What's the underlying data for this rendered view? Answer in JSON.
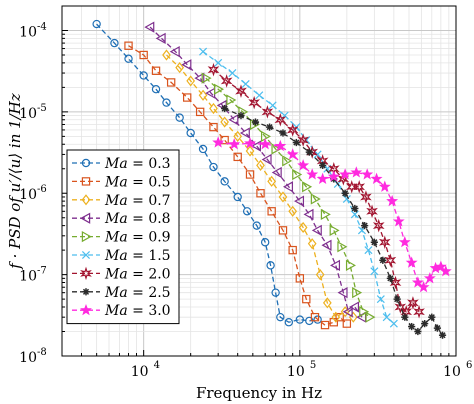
{
  "chart_data": {
    "type": "line",
    "xlabel": "Frequency in Hz",
    "ylabel": "f · PSD of u′/⟨u⟩ in 1/Hz",
    "xscale": "log",
    "yscale": "log",
    "xlim": [
      3000,
      1000000
    ],
    "ylim": [
      1e-08,
      0.0002
    ],
    "grid": true,
    "legend_position": "bottom-left",
    "x_tick_labels": [
      {
        "value": 10000,
        "base": "10",
        "exp": "4"
      },
      {
        "value": 100000,
        "base": "10",
        "exp": "5"
      },
      {
        "value": 1000000,
        "base": "10",
        "exp": "6"
      }
    ],
    "y_tick_labels": [
      {
        "value": 1e-08,
        "base": "10",
        "exp": "-8"
      },
      {
        "value": 1e-07,
        "base": "10",
        "exp": "-7"
      },
      {
        "value": 1e-06,
        "base": "10",
        "exp": "-6"
      },
      {
        "value": 1e-05,
        "base": "10",
        "exp": "-5"
      },
      {
        "value": 0.0001,
        "base": "10",
        "exp": "-4"
      }
    ],
    "series": [
      {
        "name": "Ma = 0.3",
        "legend_var": "Ma",
        "legend_val": "0.3",
        "color": "#1f6fb5",
        "marker": "circle",
        "points": [
          [
            5000,
            0.00012
          ],
          [
            6500,
            7e-05
          ],
          [
            8000,
            4.5e-05
          ],
          [
            10000,
            2.8e-05
          ],
          [
            12000,
            1.9e-05
          ],
          [
            14000,
            1.3e-05
          ],
          [
            17000,
            8.5e-06
          ],
          [
            20000,
            5.5e-06
          ],
          [
            24000,
            3.5e-06
          ],
          [
            28000,
            2.1e-06
          ],
          [
            33000,
            1.4e-06
          ],
          [
            40000,
            9e-07
          ],
          [
            46000,
            6e-07
          ],
          [
            53000,
            4e-07
          ],
          [
            60000,
            2.5e-07
          ],
          [
            65000,
            1.3e-07
          ],
          [
            70000,
            6e-08
          ],
          [
            75000,
            3e-08
          ],
          [
            85000,
            2.6e-08
          ],
          [
            100000,
            2.8e-08
          ],
          [
            115000,
            2.7e-08
          ],
          [
            130000,
            2.8e-08
          ]
        ]
      },
      {
        "name": "Ma = 0.5",
        "legend_var": "Ma",
        "legend_val": "0.5",
        "color": "#d9541e",
        "marker": "square",
        "points": [
          [
            8000,
            6.5e-05
          ],
          [
            10000,
            5e-05
          ],
          [
            12000,
            3.2e-05
          ],
          [
            15000,
            2.3e-05
          ],
          [
            19000,
            1.5e-05
          ],
          [
            23000,
            1e-05
          ],
          [
            28000,
            6.5e-06
          ],
          [
            33000,
            4.5e-06
          ],
          [
            40000,
            2.8e-06
          ],
          [
            48000,
            1.7e-06
          ],
          [
            56000,
            1e-06
          ],
          [
            66000,
            6e-07
          ],
          [
            78000,
            3.5e-07
          ],
          [
            90000,
            2e-07
          ],
          [
            100000,
            9e-08
          ],
          [
            110000,
            5e-08
          ],
          [
            125000,
            3e-08
          ],
          [
            145000,
            2.4e-08
          ],
          [
            165000,
            2.6e-08
          ],
          [
            180000,
            3e-08
          ],
          [
            200000,
            2.5e-08
          ]
        ]
      },
      {
        "name": "Ma = 0.7",
        "legend_var": "Ma",
        "legend_val": "0.7",
        "color": "#edb120",
        "marker": "diamond",
        "points": [
          [
            14000,
            5e-05
          ],
          [
            17000,
            3.5e-05
          ],
          [
            20000,
            2.4e-05
          ],
          [
            24000,
            1.6e-05
          ],
          [
            28000,
            1.1e-05
          ],
          [
            33000,
            7.5e-06
          ],
          [
            40000,
            5e-06
          ],
          [
            48000,
            3.3e-06
          ],
          [
            56000,
            2.2e-06
          ],
          [
            66000,
            1.4e-06
          ],
          [
            78000,
            9e-07
          ],
          [
            90000,
            6e-07
          ],
          [
            105000,
            3.8e-07
          ],
          [
            120000,
            2.4e-07
          ],
          [
            135000,
            1e-07
          ],
          [
            150000,
            4.5e-08
          ],
          [
            170000,
            3e-08
          ],
          [
            195000,
            3.5e-08
          ],
          [
            220000,
            3e-08
          ]
        ]
      },
      {
        "name": "Ma = 0.8",
        "legend_var": "Ma",
        "legend_val": "0.8",
        "color": "#7e2f8e",
        "marker": "triangle-left",
        "points": [
          [
            11000,
            0.00011
          ],
          [
            13000,
            8e-05
          ],
          [
            16000,
            5.5e-05
          ],
          [
            19000,
            3.8e-05
          ],
          [
            23000,
            2.6e-05
          ],
          [
            27000,
            1.7e-05
          ],
          [
            32000,
            1.2e-05
          ],
          [
            38000,
            8e-06
          ],
          [
            45000,
            5.5e-06
          ],
          [
            53000,
            3.8e-06
          ],
          [
            62000,
            2.6e-06
          ],
          [
            72000,
            1.8e-06
          ],
          [
            85000,
            1.2e-06
          ],
          [
            100000,
            8e-07
          ],
          [
            115000,
            5.5e-07
          ],
          [
            130000,
            3.5e-07
          ],
          [
            150000,
            2.3e-07
          ],
          [
            170000,
            1.3e-07
          ],
          [
            190000,
            6e-08
          ],
          [
            205000,
            3.5e-08
          ],
          [
            225000,
            4e-08
          ],
          [
            250000,
            3e-08
          ]
        ]
      },
      {
        "name": "Ma = 0.9",
        "legend_var": "Ma",
        "legend_val": "0.9",
        "color": "#77ac30",
        "marker": "triangle-right",
        "points": [
          [
            25000,
            2.6e-05
          ],
          [
            30000,
            1.9e-05
          ],
          [
            36000,
            1.4e-05
          ],
          [
            43000,
            1e-05
          ],
          [
            51000,
            7e-06
          ],
          [
            60000,
            5e-06
          ],
          [
            70000,
            3.5e-06
          ],
          [
            82000,
            2.5e-06
          ],
          [
            95000,
            1.7e-06
          ],
          [
            110000,
            1.2e-06
          ],
          [
            125000,
            8.5e-07
          ],
          [
            145000,
            5.5e-07
          ],
          [
            165000,
            3.5e-07
          ],
          [
            185000,
            2.2e-07
          ],
          [
            210000,
            1.3e-07
          ],
          [
            230000,
            6e-08
          ],
          [
            255000,
            3.5e-08
          ],
          [
            280000,
            3e-08
          ]
        ]
      },
      {
        "name": "Ma = 1.5",
        "legend_var": "Ma",
        "legend_val": "1.5",
        "color": "#4dbeee",
        "marker": "x",
        "points": [
          [
            24000,
            5.5e-05
          ],
          [
            30000,
            4e-05
          ],
          [
            37000,
            3e-05
          ],
          [
            45000,
            2.2e-05
          ],
          [
            55000,
            1.6e-05
          ],
          [
            67000,
            1.2e-05
          ],
          [
            80000,
            9e-06
          ],
          [
            95000,
            6.5e-06
          ],
          [
            110000,
            4.5e-06
          ],
          [
            130000,
            3e-06
          ],
          [
            150000,
            2e-06
          ],
          [
            175000,
            1.3e-06
          ],
          [
            200000,
            8.5e-07
          ],
          [
            225000,
            5.5e-07
          ],
          [
            250000,
            3.5e-07
          ],
          [
            275000,
            2e-07
          ],
          [
            300000,
            1.1e-07
          ],
          [
            330000,
            5e-08
          ],
          [
            360000,
            3e-08
          ],
          [
            400000,
            2.5e-08
          ]
        ]
      },
      {
        "name": "Ma = 2.0",
        "legend_var": "Ma",
        "legend_val": "2.0",
        "color": "#a2142f",
        "marker": "hexagram",
        "points": [
          [
            28000,
            3.3e-05
          ],
          [
            34000,
            2.4e-05
          ],
          [
            42000,
            1.8e-05
          ],
          [
            51000,
            1.3e-05
          ],
          [
            62000,
            1e-05
          ],
          [
            75000,
            8e-06
          ],
          [
            90000,
            6e-06
          ],
          [
            105000,
            4.5e-06
          ],
          [
            120000,
            3.2e-06
          ],
          [
            140000,
            2.5e-06
          ],
          [
            165000,
            2e-06
          ],
          [
            190000,
            1.5e-06
          ],
          [
            215000,
            1.2e-06
          ],
          [
            240000,
            1.2e-06
          ],
          [
            265000,
            9e-07
          ],
          [
            290000,
            6e-07
          ],
          [
            320000,
            4e-07
          ],
          [
            350000,
            2.5e-07
          ],
          [
            380000,
            1.5e-07
          ],
          [
            410000,
            8e-08
          ],
          [
            440000,
            4e-08
          ],
          [
            480000,
            3.5e-08
          ],
          [
            530000,
            4.5e-08
          ],
          [
            580000,
            3.5e-08
          ]
        ]
      },
      {
        "name": "Ma = 2.5",
        "legend_var": "Ma",
        "legend_val": "2.5",
        "color": "#2b2b2b",
        "marker": "asterisk",
        "points": [
          [
            33000,
            1.1e-05
          ],
          [
            42000,
            9e-06
          ],
          [
            52000,
            7.5e-06
          ],
          [
            64000,
            6.5e-06
          ],
          [
            78000,
            5.5e-06
          ],
          [
            95000,
            4.2e-06
          ],
          [
            115000,
            3.2e-06
          ],
          [
            140000,
            2.2e-06
          ],
          [
            165000,
            1.5e-06
          ],
          [
            195000,
            1e-06
          ],
          [
            225000,
            6.5e-07
          ],
          [
            260000,
            4e-07
          ],
          [
            300000,
            2.5e-07
          ],
          [
            340000,
            1.5e-07
          ],
          [
            380000,
            9e-08
          ],
          [
            420000,
            5e-08
          ],
          [
            470000,
            3e-08
          ],
          [
            520000,
            2.3e-08
          ],
          [
            570000,
            2e-08
          ],
          [
            630000,
            2.5e-08
          ],
          [
            700000,
            3e-08
          ],
          [
            760000,
            2.2e-08
          ],
          [
            820000,
            1.8e-08
          ]
        ]
      },
      {
        "name": "Ma = 3.0",
        "legend_var": "Ma",
        "legend_val": "3.0",
        "color": "#ff2adf",
        "marker": "pentagram",
        "points": [
          [
            30000,
            4.2e-06
          ],
          [
            38000,
            4e-06
          ],
          [
            48000,
            4.1e-06
          ],
          [
            60000,
            4e-06
          ],
          [
            75000,
            3.8e-06
          ],
          [
            90000,
            3e-06
          ],
          [
            105000,
            2.2e-06
          ],
          [
            120000,
            1.7e-06
          ],
          [
            140000,
            1.5e-06
          ],
          [
            165000,
            1.6e-06
          ],
          [
            195000,
            1.7e-06
          ],
          [
            230000,
            1.8e-06
          ],
          [
            270000,
            1.7e-06
          ],
          [
            310000,
            1.5e-06
          ],
          [
            350000,
            1.2e-06
          ],
          [
            390000,
            8e-07
          ],
          [
            430000,
            4.5e-07
          ],
          [
            470000,
            2.5e-07
          ],
          [
            520000,
            1.4e-07
          ],
          [
            570000,
            8e-08
          ],
          [
            620000,
            7e-08
          ],
          [
            680000,
            9e-08
          ],
          [
            740000,
            1.2e-07
          ],
          [
            800000,
            1.25e-07
          ],
          [
            860000,
            1.1e-07
          ]
        ]
      }
    ]
  }
}
